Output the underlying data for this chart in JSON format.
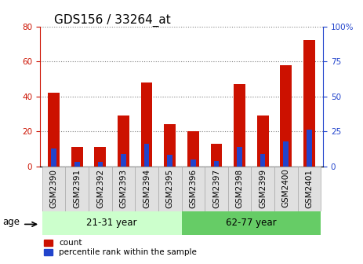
{
  "title": "GDS156 / 33264_at",
  "samples": [
    "GSM2390",
    "GSM2391",
    "GSM2392",
    "GSM2393",
    "GSM2394",
    "GSM2395",
    "GSM2396",
    "GSM2397",
    "GSM2398",
    "GSM2399",
    "GSM2400",
    "GSM2401"
  ],
  "counts": [
    42,
    11,
    11,
    29,
    48,
    24,
    20,
    13,
    47,
    29,
    58,
    72
  ],
  "percentiles": [
    13,
    3,
    3,
    9,
    16,
    8,
    5,
    4,
    14,
    9,
    18,
    26
  ],
  "bar_color": "#cc1100",
  "percentile_color": "#2244cc",
  "group1_label": "21-31 year",
  "group2_label": "62-77 year",
  "group1_indices": [
    0,
    1,
    2,
    3,
    4,
    5
  ],
  "group2_indices": [
    6,
    7,
    8,
    9,
    10,
    11
  ],
  "group1_bg": "#ccffcc",
  "group2_bg": "#66cc66",
  "ylim_left": [
    0,
    80
  ],
  "ylim_right": [
    0,
    100
  ],
  "yticks_left": [
    0,
    20,
    40,
    60,
    80
  ],
  "yticks_right": [
    0,
    25,
    50,
    75,
    100
  ],
  "ylabel_left_color": "#cc1100",
  "ylabel_right_color": "#2244cc",
  "age_label": "age",
  "legend_count": "count",
  "legend_percentile": "percentile rank within the sample",
  "title_fontsize": 11,
  "tick_fontsize": 7.5,
  "label_fontsize": 8.5,
  "bar_width": 0.5
}
